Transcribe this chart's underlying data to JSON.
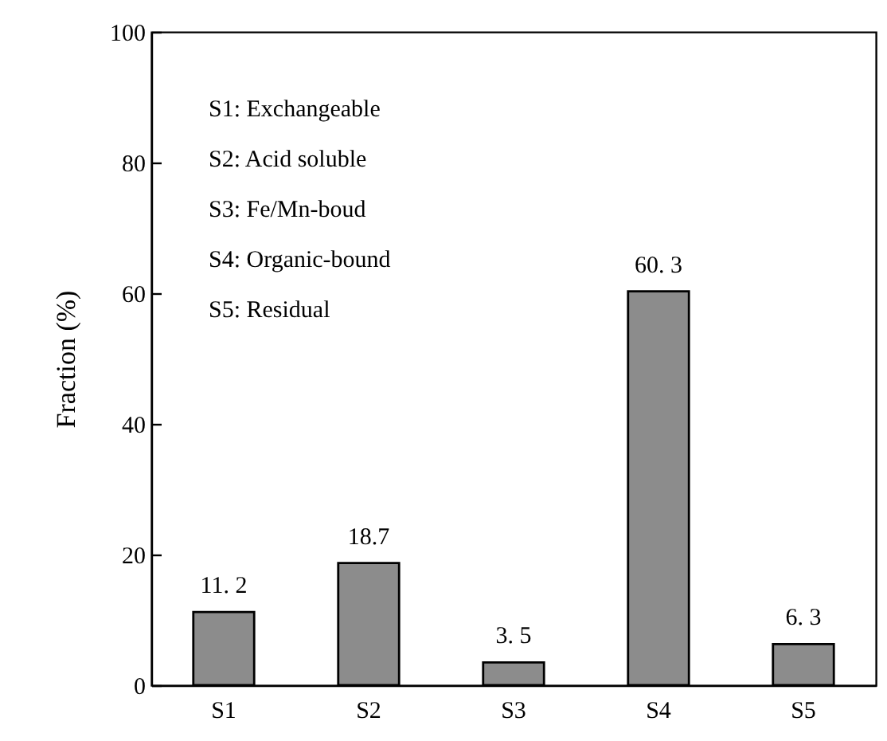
{
  "chart_data": {
    "type": "bar",
    "ylabel": "Fraction (%)",
    "categories": [
      "S1",
      "S2",
      "S3",
      "S4",
      "S5"
    ],
    "values": [
      11.2,
      18.7,
      3.5,
      60.3,
      6.3
    ],
    "value_labels": [
      "11. 2",
      "18.7",
      "3. 5",
      "60. 3",
      "6. 3"
    ],
    "color": "#8c8c8c",
    "ylim": [
      0,
      100
    ],
    "yticks": [
      0,
      20,
      40,
      60,
      80,
      100
    ],
    "annotations": [
      "S1:  Exchangeable",
      "S2:  Acid soluble",
      "S3:  Fe/Mn-boud",
      "S4:  Organic-bound",
      "S5:  Residual"
    ],
    "grid": false
  }
}
